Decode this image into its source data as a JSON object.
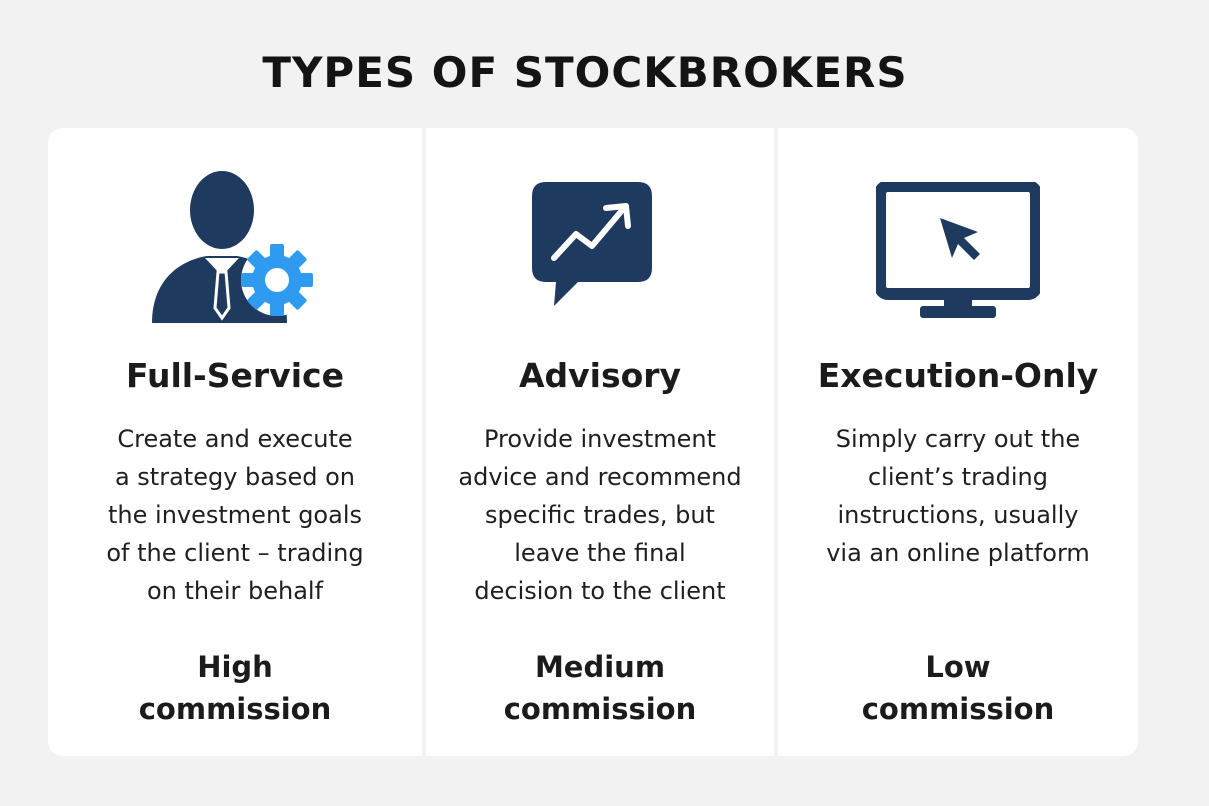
{
  "title": "TYPES OF STOCKBROKERS",
  "colors": {
    "navy": "#1f3a5f",
    "accent_blue": "#2e9bf0",
    "background": "#f2f2f2",
    "panel": "#ffffff"
  },
  "columns": [
    {
      "icon": "person-with-gear-icon",
      "title": "Full-Service",
      "description": [
        "Create and execute",
        "a strategy based on",
        "the investment goals",
        "of the client – trading",
        "on their behalf"
      ],
      "commission": [
        "High",
        "commission"
      ]
    },
    {
      "icon": "chat-bubble-trend-icon",
      "title": "Advisory",
      "description": [
        "Provide investment",
        "advice and recommend",
        "specific trades, but",
        "leave the final",
        "decision to the client"
      ],
      "commission": [
        "Medium",
        "commission"
      ]
    },
    {
      "icon": "monitor-cursor-icon",
      "title": "Execution-Only",
      "description": [
        "Simply carry out the",
        "client’s trading",
        "instructions, usually",
        "via an online platform"
      ],
      "commission": [
        "Low",
        "commission"
      ]
    }
  ]
}
